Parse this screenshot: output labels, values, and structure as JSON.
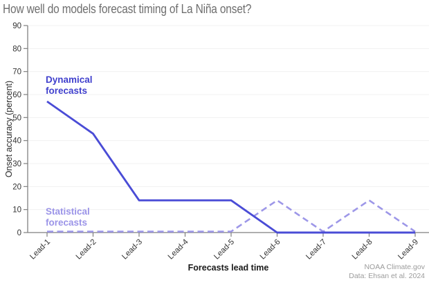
{
  "title": "How well do models forecast timing of La Niña onset?",
  "annotations": {
    "dynamical": {
      "line1": "Dynamical",
      "line2": "forecasts",
      "color": "#4040cd"
    },
    "statistical": {
      "line1": "Statistical",
      "line2": "forecasts",
      "color": "#9b94e8"
    }
  },
  "credits": {
    "line1": "NOAA Climate.gov",
    "line2": "Data: Ehsan et al. 2024"
  },
  "chart_data": {
    "type": "line",
    "title": "How well do models forecast timing of La Niña onset?",
    "x": [
      "Lead-1",
      "Lead-2",
      "Lead-3",
      "Lead-4",
      "Lead-5",
      "Lead-6",
      "Lead-7",
      "Lead-8",
      "Lead-9"
    ],
    "series": [
      {
        "name": "Dynamical forecasts",
        "style": "solid",
        "color": "#4a4cd6",
        "values": [
          57,
          43,
          14,
          14,
          14,
          0,
          0,
          0,
          0
        ]
      },
      {
        "name": "Statistical forecasts",
        "style": "dashed",
        "color": "#9d97e8",
        "values": [
          0,
          0,
          0,
          0,
          0,
          14,
          0,
          14,
          0
        ]
      }
    ],
    "xlabel": "Forecasts lead time",
    "ylabel": "Onset accuracy (percent)",
    "ylim": [
      0,
      90
    ],
    "ytick_step": 10,
    "grid": true,
    "legend_position": "inline-annotations",
    "axis_color": "#7f7f7f",
    "grid_color": "#f0f0f0",
    "tick_label_color": "#333333"
  }
}
